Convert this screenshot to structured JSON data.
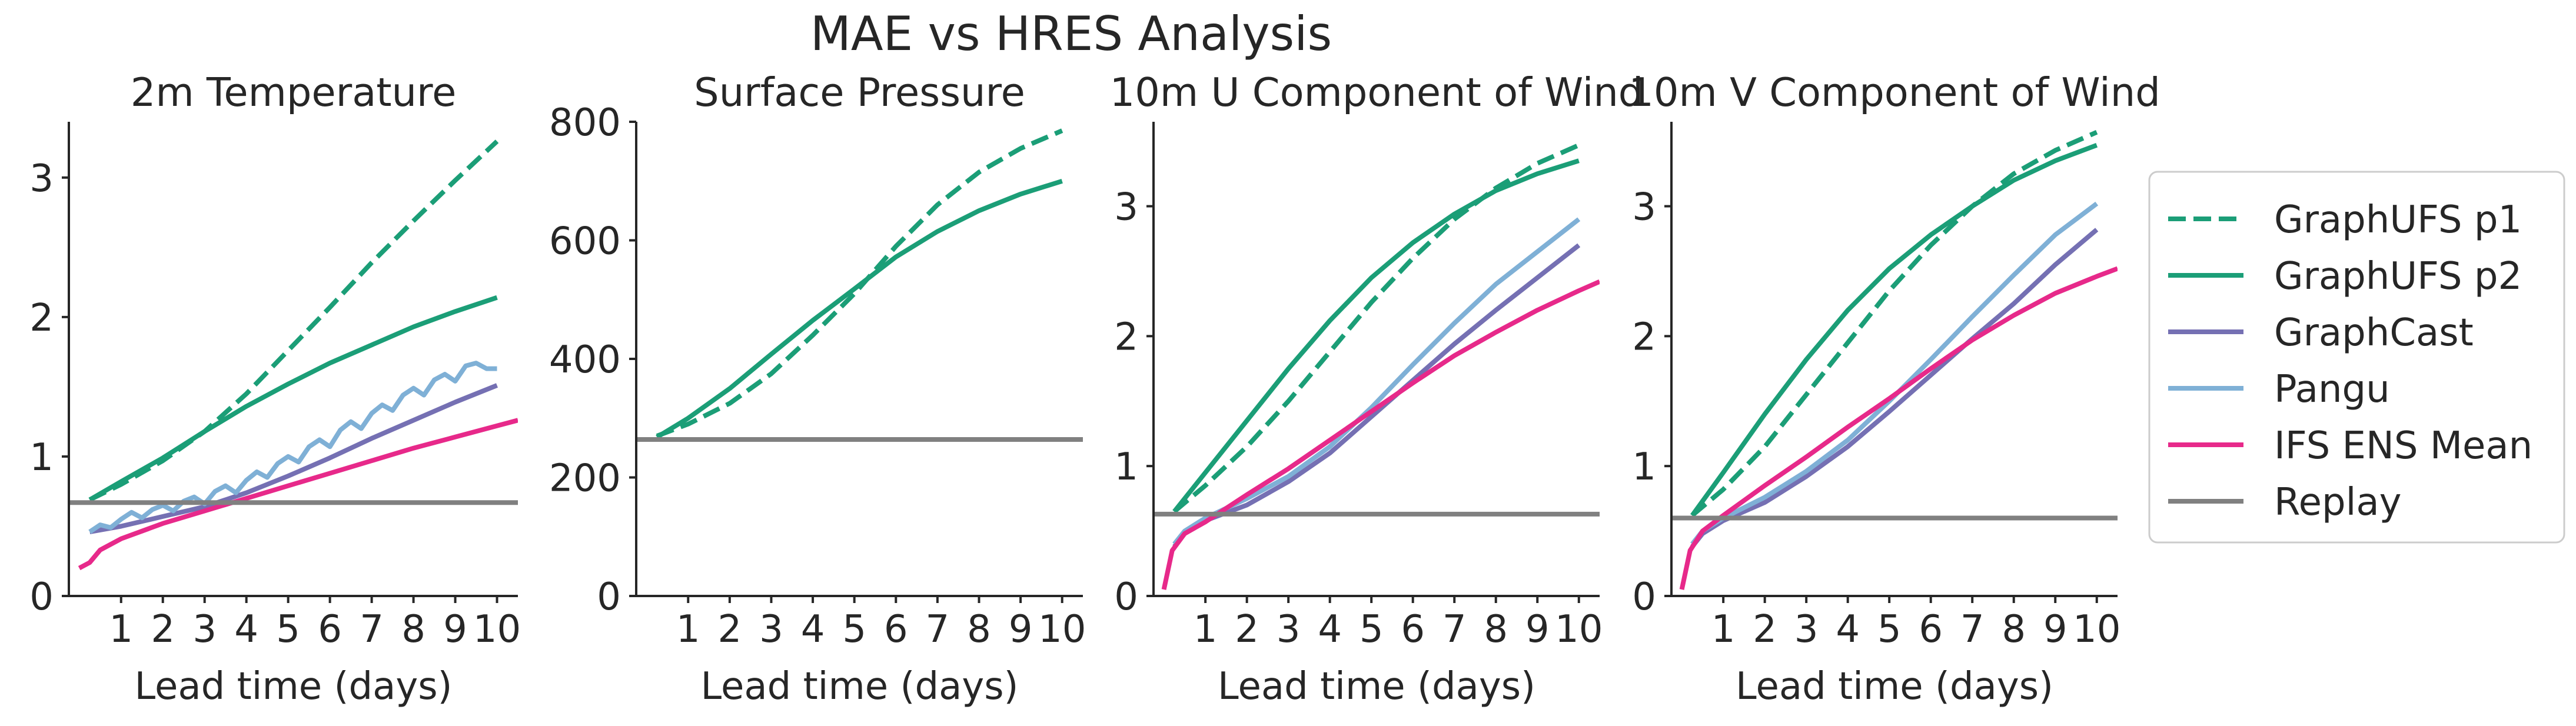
{
  "figure": {
    "title": "MAE vs HRES Analysis"
  },
  "legend": {
    "placement": "right",
    "entries": [
      {
        "name": "GraphUFS p1",
        "color": "#1b9e77",
        "dashed": true
      },
      {
        "name": "GraphUFS p2",
        "color": "#1b9e77",
        "dashed": false
      },
      {
        "name": "GraphCast",
        "color": "#7570b3",
        "dashed": false
      },
      {
        "name": "Pangu",
        "color": "#7fb0d6",
        "dashed": false
      },
      {
        "name": "IFS ENS Mean",
        "color": "#e7298a",
        "dashed": false
      },
      {
        "name": "Replay",
        "color": "#808080",
        "dashed": false
      }
    ]
  },
  "chart_data": [
    {
      "type": "line",
      "title": "2m Temperature",
      "xlabel": "Lead time (days)",
      "ylabel": "",
      "xlim": [
        -0.25,
        10.5
      ],
      "ylim": [
        0,
        3.4
      ],
      "xticks": [
        1,
        2,
        3,
        4,
        5,
        6,
        7,
        8,
        9,
        10
      ],
      "yticks": [
        0,
        1,
        2,
        3
      ],
      "grid": false,
      "series": [
        {
          "name": "GraphUFS p1",
          "x": [
            0.25,
            1,
            2,
            3,
            4,
            5,
            6,
            7,
            8,
            9,
            10
          ],
          "y": [
            0.69,
            0.8,
            0.97,
            1.18,
            1.45,
            1.76,
            2.07,
            2.39,
            2.69,
            2.98,
            3.26
          ]
        },
        {
          "name": "GraphUFS p2",
          "x": [
            0.25,
            1,
            2,
            3,
            4,
            5,
            6,
            7,
            8,
            9,
            10
          ],
          "y": [
            0.69,
            0.82,
            0.99,
            1.18,
            1.36,
            1.52,
            1.67,
            1.8,
            1.93,
            2.04,
            2.14
          ]
        },
        {
          "name": "GraphCast",
          "x": [
            0.25,
            1,
            2,
            3,
            4,
            5,
            6,
            7,
            8,
            9,
            10
          ],
          "y": [
            0.46,
            0.5,
            0.57,
            0.64,
            0.74,
            0.86,
            0.99,
            1.13,
            1.26,
            1.39,
            1.51
          ]
        },
        {
          "name": "Pangu",
          "x": [
            0.25,
            0.5,
            0.75,
            1,
            1.25,
            1.5,
            1.75,
            2,
            2.25,
            2.5,
            2.75,
            3,
            3.25,
            3.5,
            3.75,
            4,
            4.25,
            4.5,
            4.75,
            5,
            5.25,
            5.5,
            5.75,
            6,
            6.25,
            6.5,
            6.75,
            7,
            7.25,
            7.5,
            7.75,
            8,
            8.25,
            8.5,
            8.75,
            9,
            9.25,
            9.5,
            9.75,
            10
          ],
          "y": [
            0.46,
            0.51,
            0.49,
            0.55,
            0.6,
            0.56,
            0.62,
            0.65,
            0.61,
            0.68,
            0.71,
            0.66,
            0.75,
            0.79,
            0.74,
            0.83,
            0.89,
            0.85,
            0.95,
            1.0,
            0.96,
            1.07,
            1.12,
            1.07,
            1.19,
            1.25,
            1.2,
            1.31,
            1.37,
            1.33,
            1.44,
            1.49,
            1.44,
            1.55,
            1.59,
            1.54,
            1.65,
            1.67,
            1.63,
            1.63
          ]
        },
        {
          "name": "IFS ENS Mean",
          "x": [
            0,
            0.25,
            0.5,
            1,
            2,
            3,
            4,
            5,
            6,
            7,
            8,
            9,
            10,
            10.5
          ],
          "y": [
            0.2,
            0.24,
            0.33,
            0.41,
            0.52,
            0.61,
            0.7,
            0.79,
            0.88,
            0.97,
            1.06,
            1.14,
            1.22,
            1.26
          ]
        },
        {
          "name": "Replay",
          "x": [
            -0.25,
            10.5
          ],
          "y": [
            0.67,
            0.67
          ]
        }
      ]
    },
    {
      "type": "line",
      "title": "Surface Pressure",
      "xlabel": "Lead time (days)",
      "ylabel": "",
      "xlim": [
        -0.25,
        10.5
      ],
      "ylim": [
        0,
        800
      ],
      "xticks": [
        1,
        2,
        3,
        4,
        5,
        6,
        7,
        8,
        9,
        10
      ],
      "yticks": [
        0,
        200,
        400,
        600,
        800
      ],
      "grid": false,
      "series": [
        {
          "name": "GraphUFS p1",
          "x": [
            0.25,
            1,
            2,
            3,
            4,
            5,
            6,
            7,
            8,
            9,
            10
          ],
          "y": [
            270,
            290,
            325,
            375,
            440,
            510,
            590,
            660,
            715,
            755,
            785
          ]
        },
        {
          "name": "GraphUFS p2",
          "x": [
            0.25,
            1,
            2,
            3,
            4,
            5,
            6,
            7,
            8,
            9,
            10
          ],
          "y": [
            268,
            300,
            350,
            408,
            465,
            518,
            572,
            615,
            650,
            678,
            700
          ]
        },
        {
          "name": "Replay",
          "x": [
            -0.25,
            10.5
          ],
          "y": [
            264,
            264
          ]
        }
      ]
    },
    {
      "type": "line",
      "title": "10m U Component of Wind",
      "xlabel": "Lead time (days)",
      "ylabel": "",
      "xlim": [
        -0.25,
        10.5
      ],
      "ylim": [
        0,
        3.65
      ],
      "xticks": [
        1,
        2,
        3,
        4,
        5,
        6,
        7,
        8,
        9,
        10
      ],
      "yticks": [
        0,
        1,
        2,
        3
      ],
      "grid": false,
      "series": [
        {
          "name": "GraphUFS p1",
          "x": [
            0.25,
            1,
            2,
            3,
            4,
            5,
            6,
            7,
            8,
            9,
            10
          ],
          "y": [
            0.65,
            0.85,
            1.15,
            1.5,
            1.88,
            2.26,
            2.6,
            2.9,
            3.14,
            3.33,
            3.47
          ]
        },
        {
          "name": "GraphUFS p2",
          "x": [
            0.25,
            1,
            2,
            3,
            4,
            5,
            6,
            7,
            8,
            9,
            10
          ],
          "y": [
            0.65,
            0.95,
            1.35,
            1.75,
            2.12,
            2.45,
            2.72,
            2.94,
            3.12,
            3.25,
            3.35
          ]
        },
        {
          "name": "GraphCast",
          "x": [
            0.25,
            0.5,
            1,
            2,
            3,
            4,
            5,
            6,
            7,
            8,
            9,
            10
          ],
          "y": [
            0.38,
            0.48,
            0.58,
            0.7,
            0.88,
            1.1,
            1.38,
            1.66,
            1.94,
            2.2,
            2.45,
            2.7
          ]
        },
        {
          "name": "Pangu",
          "x": [
            0.25,
            0.5,
            1,
            2,
            3,
            4,
            5,
            6,
            7,
            8,
            9,
            10
          ],
          "y": [
            0.4,
            0.5,
            0.6,
            0.75,
            0.92,
            1.15,
            1.45,
            1.78,
            2.1,
            2.4,
            2.65,
            2.9
          ]
        },
        {
          "name": "IFS ENS Mean",
          "x": [
            0,
            0.2,
            0.5,
            1,
            2,
            3,
            4,
            5,
            6,
            7,
            8,
            9,
            10,
            10.5
          ],
          "y": [
            0.05,
            0.35,
            0.48,
            0.57,
            0.78,
            0.98,
            1.2,
            1.42,
            1.64,
            1.85,
            2.03,
            2.2,
            2.35,
            2.42
          ]
        },
        {
          "name": "Replay",
          "x": [
            -0.25,
            10.5
          ],
          "y": [
            0.63,
            0.63
          ]
        }
      ]
    },
    {
      "type": "line",
      "title": "10m V Component of Wind",
      "xlabel": "Lead time (days)",
      "ylabel": "",
      "xlim": [
        -0.25,
        10.5
      ],
      "ylim": [
        0,
        3.65
      ],
      "xticks": [
        1,
        2,
        3,
        4,
        5,
        6,
        7,
        8,
        9,
        10
      ],
      "yticks": [
        0,
        1,
        2,
        3
      ],
      "grid": false,
      "series": [
        {
          "name": "GraphUFS p1",
          "x": [
            0.25,
            1,
            2,
            3,
            4,
            5,
            6,
            7,
            8,
            9,
            10
          ],
          "y": [
            0.62,
            0.82,
            1.15,
            1.55,
            1.95,
            2.35,
            2.7,
            3.0,
            3.25,
            3.43,
            3.57
          ]
        },
        {
          "name": "GraphUFS p2",
          "x": [
            0.25,
            1,
            2,
            3,
            4,
            5,
            6,
            7,
            8,
            9,
            10
          ],
          "y": [
            0.62,
            0.95,
            1.4,
            1.82,
            2.2,
            2.52,
            2.78,
            3.0,
            3.2,
            3.35,
            3.47
          ]
        },
        {
          "name": "GraphCast",
          "x": [
            0.25,
            0.5,
            1,
            2,
            3,
            4,
            5,
            6,
            7,
            8,
            9,
            10
          ],
          "y": [
            0.38,
            0.48,
            0.58,
            0.72,
            0.92,
            1.15,
            1.42,
            1.7,
            1.98,
            2.25,
            2.55,
            2.82
          ]
        },
        {
          "name": "Pangu",
          "x": [
            0.25,
            0.5,
            1,
            2,
            3,
            4,
            5,
            6,
            7,
            8,
            9,
            10
          ],
          "y": [
            0.4,
            0.5,
            0.6,
            0.76,
            0.96,
            1.2,
            1.5,
            1.82,
            2.15,
            2.47,
            2.78,
            3.02
          ]
        },
        {
          "name": "IFS ENS Mean",
          "x": [
            0,
            0.2,
            0.5,
            1,
            2,
            3,
            4,
            5,
            6,
            7,
            8,
            9,
            10,
            10.5
          ],
          "y": [
            0.05,
            0.35,
            0.5,
            0.62,
            0.85,
            1.07,
            1.3,
            1.52,
            1.75,
            1.97,
            2.16,
            2.33,
            2.46,
            2.52
          ]
        },
        {
          "name": "Replay",
          "x": [
            -0.25,
            10.5
          ],
          "y": [
            0.6,
            0.6
          ]
        }
      ]
    }
  ]
}
